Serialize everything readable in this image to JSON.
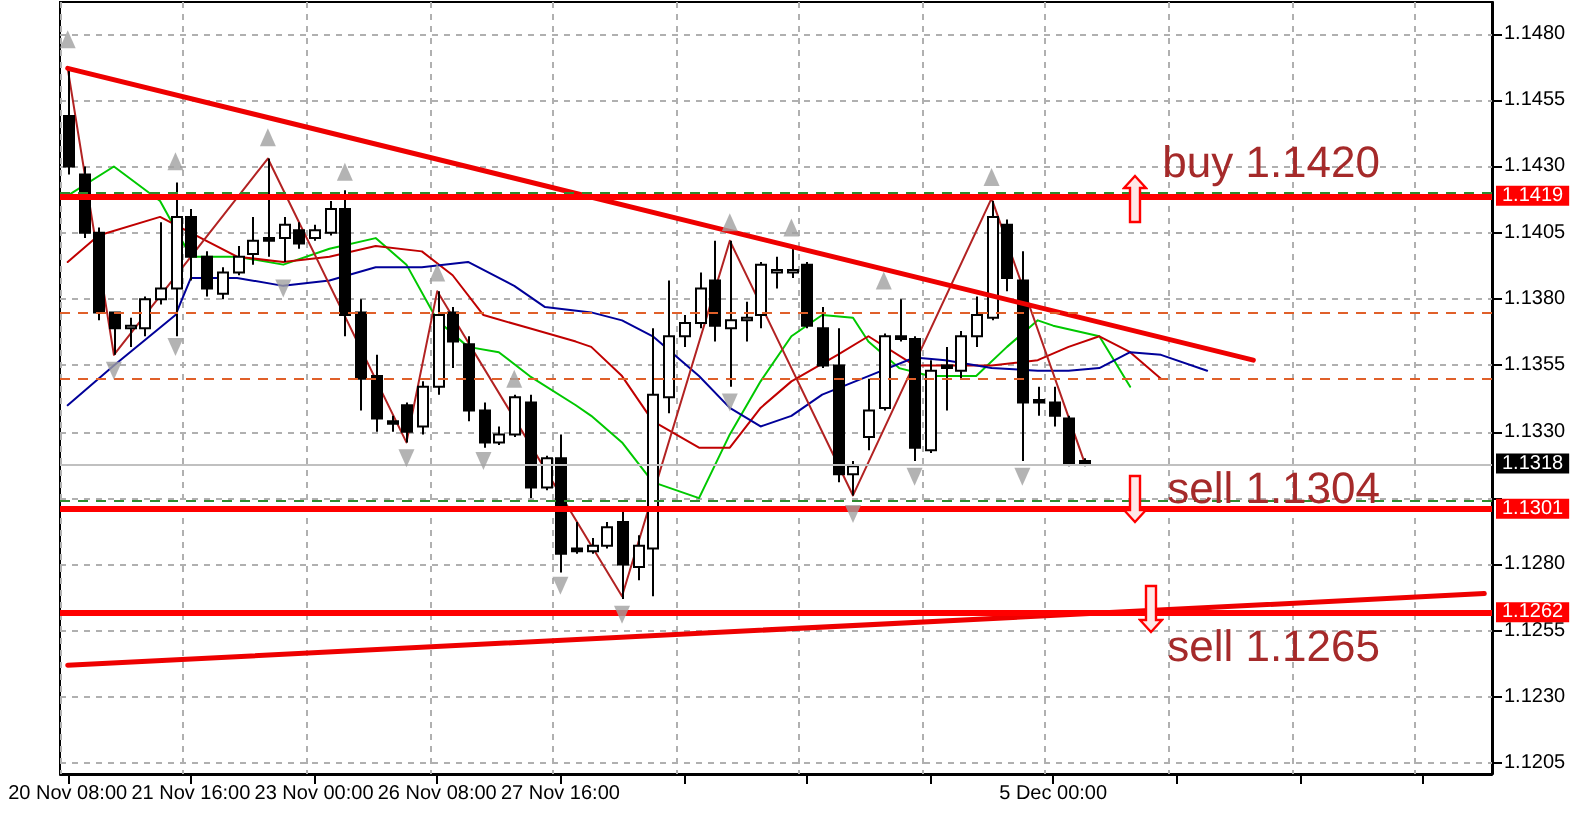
{
  "chart_data": {
    "type": "candlestick",
    "categories": [
      "20 Nov 08:00",
      null,
      null,
      null,
      null,
      null,
      null,
      null,
      "21 Nov 16:00",
      null,
      null,
      null,
      null,
      null,
      null,
      null,
      "23 Nov 00:00",
      null,
      null,
      null,
      null,
      null,
      null,
      null,
      "26 Nov 08:00",
      null,
      null,
      null,
      null,
      null,
      null,
      null,
      "27 Nov 16:00",
      null,
      null,
      null,
      null,
      null,
      null,
      null,
      null,
      null,
      null,
      null,
      null,
      null,
      null,
      null,
      null,
      null,
      null,
      null,
      null,
      null,
      null,
      null,
      null,
      null,
      null,
      null,
      null,
      null,
      null,
      null,
      "5 Dec 00:00",
      null,
      null,
      null,
      null,
      null,
      null,
      null,
      null,
      null,
      null,
      null,
      null,
      null,
      null,
      null,
      null,
      null,
      null,
      null,
      null,
      null,
      null,
      null,
      null,
      null,
      null,
      null,
      null
    ],
    "ohlc": [
      [
        1.1449,
        1.1467,
        1.1427,
        1.143
      ],
      [
        1.1427,
        1.143,
        1.1403,
        1.1405
      ],
      [
        1.1405,
        1.1407,
        1.1372,
        1.1375
      ],
      [
        1.1375,
        1.1375,
        1.1359,
        1.1369
      ],
      [
        1.1369,
        1.1373,
        1.1362,
        1.137
      ],
      [
        1.1369,
        1.1381,
        1.1366,
        1.138
      ],
      [
        1.138,
        1.1409,
        1.1378,
        1.1384
      ],
      [
        1.1384,
        1.1424,
        1.1366,
        1.1411
      ],
      [
        1.1411,
        1.1414,
        1.1387,
        1.1396
      ],
      [
        1.1396,
        1.1398,
        1.1381,
        1.1384
      ],
      [
        1.1382,
        1.1392,
        1.138,
        1.139
      ],
      [
        1.139,
        1.14,
        1.1389,
        1.1396
      ],
      [
        1.1397,
        1.1411,
        1.1393,
        1.1402
      ],
      [
        1.1403,
        1.1433,
        1.1396,
        1.1402
      ],
      [
        1.1403,
        1.1411,
        1.1394,
        1.1408
      ],
      [
        1.1406,
        1.1409,
        1.1399,
        1.1401
      ],
      [
        1.1403,
        1.1408,
        1.1402,
        1.1406
      ],
      [
        1.1405,
        1.1417,
        1.1404,
        1.1414
      ],
      [
        1.1414,
        1.1421,
        1.1366,
        1.1374
      ],
      [
        1.1375,
        1.138,
        1.1338,
        1.135
      ],
      [
        1.1351,
        1.1359,
        1.133,
        1.1335
      ],
      [
        1.1334,
        1.1336,
        1.133,
        1.1333
      ],
      [
        1.134,
        1.1341,
        1.1326,
        1.133
      ],
      [
        1.1332,
        1.1349,
        1.1329,
        1.1347
      ],
      [
        1.1347,
        1.1383,
        1.1344,
        1.1374
      ],
      [
        1.1375,
        1.1377,
        1.1354,
        1.1364
      ],
      [
        1.1363,
        1.1366,
        1.1334,
        1.1338
      ],
      [
        1.1338,
        1.1341,
        1.1324,
        1.1326
      ],
      [
        1.1326,
        1.1332,
        1.1325,
        1.1329
      ],
      [
        1.1329,
        1.1344,
        1.1328,
        1.1343
      ],
      [
        1.1341,
        1.1344,
        1.1305,
        1.1309
      ],
      [
        1.1309,
        1.1321,
        1.1308,
        1.132
      ],
      [
        1.132,
        1.1329,
        1.1277,
        1.1284
      ],
      [
        1.1286,
        1.1296,
        1.1284,
        1.1285
      ],
      [
        1.1285,
        1.129,
        1.1284,
        1.1287
      ],
      [
        1.1287,
        1.1296,
        1.1286,
        1.1294
      ],
      [
        1.1296,
        1.13,
        1.1267,
        1.128
      ],
      [
        1.1279,
        1.1291,
        1.1274,
        1.1287
      ],
      [
        1.1286,
        1.1369,
        1.1268,
        1.1344
      ],
      [
        1.1343,
        1.1387,
        1.1337,
        1.1366
      ],
      [
        1.1366,
        1.1374,
        1.1362,
        1.1371
      ],
      [
        1.1371,
        1.139,
        1.1369,
        1.1384
      ],
      [
        1.1387,
        1.1402,
        1.1364,
        1.137
      ],
      [
        1.1369,
        1.1402,
        1.1347,
        1.1372
      ],
      [
        1.1372,
        1.1379,
        1.1364,
        1.1373
      ],
      [
        1.1374,
        1.1394,
        1.1369,
        1.1393
      ],
      [
        1.139,
        1.1396,
        1.1384,
        1.1391
      ],
      [
        1.139,
        1.1399,
        1.1388,
        1.1391
      ],
      [
        1.1393,
        1.1394,
        1.1369,
        1.137
      ],
      [
        1.1369,
        1.1377,
        1.1354,
        1.1355
      ],
      [
        1.1355,
        1.1369,
        1.1311,
        1.1314
      ],
      [
        1.1314,
        1.1319,
        1.1306,
        1.1317
      ],
      [
        1.1328,
        1.135,
        1.1323,
        1.1338
      ],
      [
        1.1339,
        1.1367,
        1.1338,
        1.1366
      ],
      [
        1.1366,
        1.138,
        1.1364,
        1.1365
      ],
      [
        1.1365,
        1.1366,
        1.1319,
        1.1324
      ],
      [
        1.1323,
        1.1357,
        1.1322,
        1.1353
      ],
      [
        1.1355,
        1.1362,
        1.1338,
        1.1354
      ],
      [
        1.1353,
        1.1368,
        1.135,
        1.1366
      ],
      [
        1.1366,
        1.1381,
        1.1362,
        1.1374
      ],
      [
        1.1373,
        1.1417,
        1.1372,
        1.1411
      ],
      [
        1.1408,
        1.141,
        1.1383,
        1.1388
      ],
      [
        1.1387,
        1.1398,
        1.1319,
        1.1341
      ],
      [
        1.1342,
        1.1347,
        1.1336,
        1.1341
      ],
      [
        1.1341,
        1.1347,
        1.1332,
        1.1336
      ],
      [
        1.1335,
        1.1336,
        1.1317,
        1.1318
      ],
      [
        1.1319,
        1.132,
        1.1317,
        1.1318
      ],
      null,
      null,
      null,
      null,
      null,
      null,
      null,
      null,
      null,
      null,
      null,
      null,
      null,
      null,
      null,
      null,
      null,
      null,
      null,
      null,
      null,
      null,
      null,
      null,
      null,
      null
    ],
    "series": [
      {
        "type": "line",
        "color": "#00c800",
        "marker": "none",
        "values": [
          1.1419,
          null,
          null,
          1.143,
          null,
          null,
          1.1417,
          null,
          1.1396,
          null,
          null,
          1.1396,
          null,
          null,
          1.1393,
          null,
          null,
          1.1399,
          null,
          null,
          1.1403,
          null,
          1.1393,
          null,
          1.1372,
          null,
          1.1362,
          null,
          1.136,
          null,
          1.1351,
          null,
          null,
          1.134,
          1.1336,
          null,
          1.1326,
          null,
          1.1311,
          null,
          null,
          1.1305,
          null,
          1.1329,
          null,
          1.1349,
          null,
          1.1366,
          null,
          1.1374,
          null,
          1.1373,
          1.1364,
          null,
          1.1354,
          null,
          1.1351,
          null,
          null,
          1.1351,
          null,
          1.1362,
          null,
          1.1372,
          1.137,
          null,
          null,
          1.1366,
          null,
          1.1347,
          null,
          null,
          null,
          null,
          null,
          null,
          null,
          null,
          null,
          null,
          null,
          null,
          null,
          null,
          null,
          null,
          null,
          null,
          null,
          null,
          null,
          null,
          null
        ]
      },
      {
        "type": "line",
        "color": "#c00000",
        "marker": "none",
        "values": [
          1.1394,
          null,
          1.1404,
          null,
          null,
          null,
          1.1411,
          null,
          1.1405,
          null,
          null,
          1.1396,
          null,
          null,
          1.1394,
          null,
          null,
          1.1396,
          null,
          null,
          1.14,
          null,
          null,
          1.1398,
          null,
          1.1389,
          null,
          1.1374,
          null,
          null,
          1.1369,
          null,
          null,
          1.1364,
          1.1362,
          null,
          1.1351,
          null,
          1.1334,
          null,
          null,
          1.1324,
          null,
          1.1324,
          null,
          1.1339,
          null,
          1.1349,
          null,
          null,
          1.1359,
          null,
          1.1366,
          null,
          null,
          1.1355,
          null,
          1.1355,
          null,
          null,
          1.1355,
          null,
          null,
          1.1357,
          null,
          1.1362,
          null,
          1.1366,
          null,
          1.136,
          null,
          1.135,
          null,
          null,
          null,
          null,
          null,
          null,
          null,
          null,
          null,
          null,
          null,
          null,
          null,
          null,
          null,
          null,
          null,
          null,
          null,
          null,
          null
        ]
      },
      {
        "type": "line",
        "color": "#000099",
        "marker": "none",
        "values": [
          1.134,
          null,
          null,
          1.1355,
          null,
          null,
          null,
          1.1374,
          1.1388,
          null,
          null,
          1.1388,
          null,
          null,
          1.1385,
          null,
          null,
          1.1387,
          null,
          null,
          1.1392,
          null,
          null,
          1.1392,
          null,
          null,
          1.1394,
          null,
          null,
          1.1385,
          null,
          1.1377,
          null,
          null,
          1.1375,
          null,
          1.1372,
          null,
          1.1366,
          null,
          null,
          1.1351,
          null,
          1.1339,
          null,
          1.1332,
          null,
          1.1336,
          null,
          1.1344,
          null,
          null,
          1.1351,
          null,
          null,
          1.1358,
          null,
          1.1357,
          null,
          null,
          1.1354,
          null,
          null,
          1.1353,
          null,
          1.1353,
          null,
          1.1354,
          null,
          1.136,
          null,
          1.1359,
          null,
          null,
          1.1353,
          null,
          null,
          null,
          null,
          null,
          null,
          null,
          null,
          null,
          null,
          null,
          null,
          null,
          null,
          null,
          null,
          null,
          null
        ]
      },
      {
        "type": "line",
        "color": "#b22222",
        "marker": "none",
        "values": [
          1.1467,
          null,
          null,
          1.1359,
          null,
          null,
          null,
          null,
          null,
          null,
          null,
          null,
          null,
          1.1433,
          null,
          null,
          null,
          null,
          null,
          null,
          null,
          null,
          1.1326,
          null,
          1.1383,
          null,
          null,
          null,
          null,
          null,
          null,
          null,
          null,
          null,
          null,
          null,
          1.1268,
          null,
          null,
          null,
          null,
          null,
          null,
          1.1402,
          null,
          null,
          null,
          null,
          null,
          null,
          null,
          1.1306,
          null,
          null,
          null,
          null,
          null,
          null,
          null,
          null,
          1.1418,
          null,
          null,
          null,
          null,
          null,
          1.1319,
          null,
          null,
          null,
          null,
          null,
          null,
          null,
          null,
          null,
          null,
          null,
          null,
          null,
          null,
          null,
          null,
          null,
          null,
          null,
          null,
          null,
          null,
          null,
          null,
          null,
          null
        ]
      },
      {
        "type": "line",
        "color": "#ee0000",
        "marker": "none",
        "values": [
          1.1467,
          null,
          null,
          null,
          null,
          null,
          null,
          null,
          null,
          null,
          null,
          null,
          null,
          null,
          null,
          null,
          null,
          null,
          null,
          null,
          null,
          null,
          null,
          null,
          null,
          null,
          null,
          null,
          null,
          null,
          null,
          null,
          null,
          null,
          null,
          null,
          null,
          null,
          null,
          null,
          null,
          null,
          null,
          null,
          null,
          null,
          null,
          null,
          null,
          null,
          null,
          null,
          null,
          null,
          null,
          null,
          null,
          null,
          null,
          null,
          null,
          null,
          null,
          null,
          null,
          null,
          null,
          null,
          null,
          null,
          null,
          null,
          null,
          null,
          null,
          null,
          null,
          1.1357,
          null,
          null,
          null,
          null,
          null,
          null,
          null,
          null,
          null,
          null,
          null,
          null,
          null,
          null,
          null
        ]
      },
      {
        "type": "line",
        "color": "#ee0000",
        "marker": "none",
        "values": [
          1.1242,
          null,
          null,
          null,
          null,
          null,
          null,
          null,
          null,
          null,
          null,
          null,
          null,
          null,
          null,
          null,
          null,
          null,
          null,
          null,
          null,
          null,
          null,
          null,
          null,
          null,
          null,
          null,
          null,
          null,
          null,
          null,
          null,
          null,
          null,
          null,
          null,
          null,
          null,
          null,
          null,
          null,
          null,
          null,
          null,
          null,
          null,
          null,
          null,
          null,
          null,
          null,
          null,
          null,
          null,
          null,
          null,
          null,
          null,
          null,
          null,
          null,
          null,
          null,
          null,
          null,
          null,
          null,
          null,
          null,
          null,
          null,
          null,
          null,
          null,
          null,
          null,
          null,
          null,
          null,
          null,
          null,
          null,
          null,
          null,
          null,
          null,
          null,
          null,
          null,
          null,
          null,
          1.1269
        ]
      },
      {
        "type": "scatter",
        "color": "#a0a0a0",
        "marker": "triangle",
        "values": [
          1.1478,
          null,
          null,
          null,
          null,
          null,
          null,
          1.1432,
          null,
          null,
          null,
          null,
          null,
          1.1441,
          null,
          null,
          null,
          null,
          1.1428,
          null,
          null,
          null,
          null,
          null,
          1.139,
          null,
          null,
          null,
          null,
          1.135,
          null,
          null,
          null,
          null,
          null,
          null,
          null,
          null,
          null,
          null,
          null,
          null,
          null,
          1.1409,
          null,
          null,
          null,
          1.1407,
          null,
          null,
          null,
          null,
          null,
          1.1387,
          null,
          null,
          null,
          null,
          null,
          null,
          1.1426,
          null,
          null,
          null,
          null,
          null,
          null,
          null,
          null,
          null,
          null,
          null,
          null,
          null,
          null,
          null,
          null,
          null,
          null,
          null,
          null,
          null,
          null,
          null,
          null,
          null,
          null,
          null,
          null,
          null,
          null,
          null,
          null
        ]
      },
      {
        "type": "scatter",
        "color": "#a0a0a0",
        "marker": "triangle",
        "values": [
          null,
          null,
          null,
          1.1353,
          null,
          null,
          null,
          1.1362,
          null,
          null,
          null,
          null,
          null,
          null,
          1.1384,
          null,
          null,
          null,
          null,
          null,
          null,
          null,
          1.132,
          null,
          null,
          null,
          null,
          1.1319,
          null,
          null,
          null,
          null,
          1.1272,
          null,
          null,
          null,
          1.1261,
          null,
          null,
          null,
          null,
          null,
          null,
          1.1341,
          null,
          null,
          null,
          null,
          null,
          null,
          null,
          1.1299,
          null,
          null,
          null,
          1.1313,
          null,
          null,
          null,
          null,
          null,
          null,
          1.1313,
          null,
          null,
          null,
          null,
          null,
          null,
          null,
          null,
          null,
          null,
          null,
          null,
          null,
          null,
          null,
          null,
          null,
          null,
          null,
          null,
          null,
          null,
          null,
          null,
          null,
          null,
          null,
          null,
          null,
          null
        ]
      }
    ],
    "ylim": [
      1.1201,
      1.1492
    ],
    "yticks": [
      1.1205,
      {
        "value": 1.123,
        "label": "1.1230"
      },
      1.1255,
      {
        "value": 1.128,
        "label": "1.1280"
      },
      {
        "value": 1.1305,
        "label": null
      },
      {
        "value": 1.133,
        "label": "1.1330"
      },
      1.1355,
      {
        "value": 1.138,
        "label": "1.1380"
      },
      1.1405,
      {
        "value": 1.143,
        "label": "1.1430"
      },
      1.1455,
      {
        "value": 1.148,
        "label": "1.1480"
      }
    ],
    "grid": true,
    "ref_lines": [
      {
        "axis": "y",
        "value": 1.1419,
        "label": "1.1419",
        "color": "#ff0000"
      },
      {
        "axis": "y",
        "value": 1.1301,
        "label": "1.1301",
        "color": "#ff0000"
      },
      {
        "axis": "y",
        "value": 1.1262,
        "label": "1.1262",
        "color": "#ff0000"
      },
      {
        "axis": "y",
        "value": 1.1318,
        "label": "1.1318",
        "color": "#c0c0c0",
        "line_style": "solid"
      },
      {
        "axis": "y",
        "value": 1.1375,
        "color": "#e0602a",
        "line_style": "dashed"
      },
      {
        "axis": "y",
        "value": 1.135,
        "color": "#e0602a",
        "line_style": "dashed"
      },
      {
        "axis": "y",
        "value": 1.142,
        "color": "#2e8b2e",
        "line_style": "dashed"
      },
      {
        "axis": "y",
        "value": 1.1304,
        "color": "#2e8b2e",
        "line_style": "dashed"
      }
    ],
    "annotations": [
      "buy 1.1420",
      "sell 1.1304",
      "sell 1.1265"
    ]
  }
}
